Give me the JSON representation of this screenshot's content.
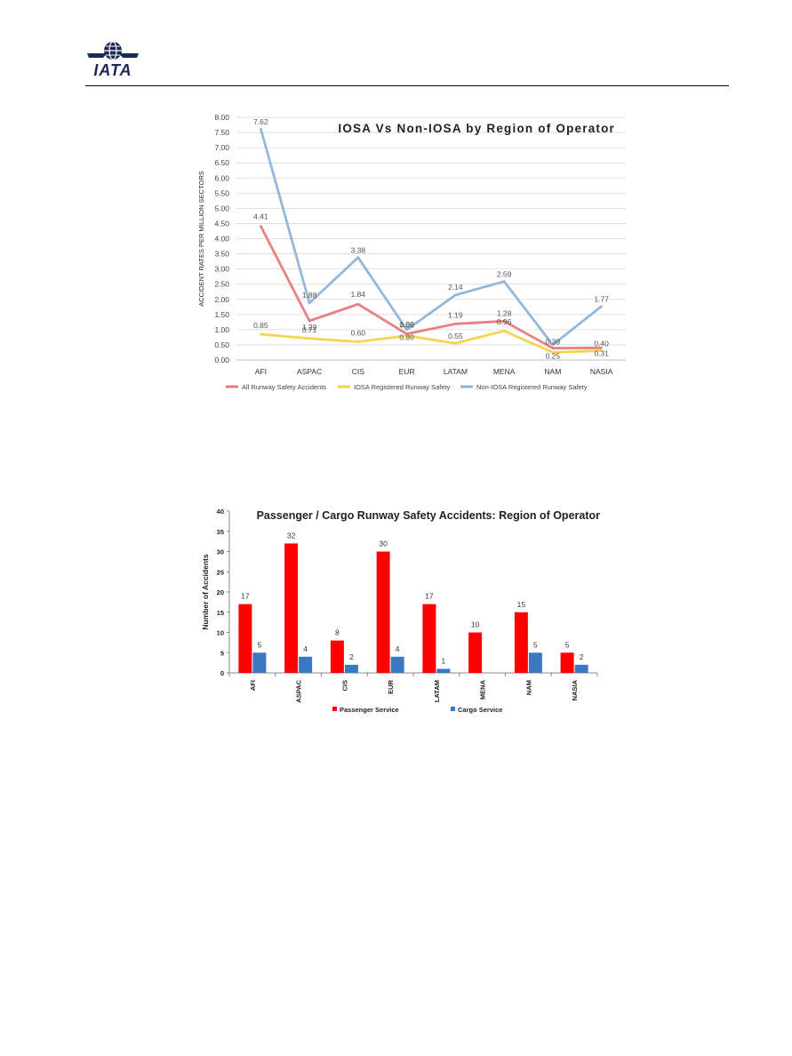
{
  "header": {
    "logo_text": "IATA"
  },
  "chart_data": [
    {
      "type": "line",
      "title": "IOSA Vs Non-IOSA by Region of Operator",
      "xlabel": "",
      "ylabel": "ACCIDENT RATES PER MILLION SECTORS",
      "categories": [
        "AFI",
        "ASPAC",
        "CIS",
        "EUR",
        "LATAM",
        "MENA",
        "NAM",
        "NASIA"
      ],
      "ylim": [
        0,
        8
      ],
      "yticks": [
        "0.00",
        "0.50",
        "1.00",
        "1.50",
        "2.00",
        "2.50",
        "3.00",
        "3.50",
        "4.00",
        "4.50",
        "5.00",
        "5.50",
        "6.00",
        "6.50",
        "7.00",
        "7.50",
        "8.00"
      ],
      "grid": true,
      "legend_position": "bottom",
      "series": [
        {
          "name": "All Runway Safety Accidents",
          "color": "#e8787a",
          "values": [
            4.41,
            1.29,
            1.84,
            0.86,
            1.19,
            1.28,
            0.39,
            0.4
          ],
          "labels": [
            "4.41",
            "1.29",
            "1.84",
            "0.86",
            "1.19",
            "1.28",
            "0.39",
            "0.40"
          ]
        },
        {
          "name": "IOSA Registered Runway Safety",
          "color": "#f4d24a",
          "values": [
            0.85,
            0.71,
            0.6,
            0.8,
            0.55,
            0.96,
            0.25,
            0.31
          ],
          "labels": [
            "0.85",
            "0.71",
            "0.60",
            "0.80",
            "0.55",
            "0.96",
            "0.25",
            "0.31"
          ]
        },
        {
          "name": "Non-IOSA Registered Runway Safety",
          "color": "#8eb4d8",
          "values": [
            7.62,
            1.88,
            3.38,
            1.0,
            2.14,
            2.59,
            0.5,
            1.77
          ],
          "labels": [
            "7.62",
            "1.88",
            "3.38",
            "1.00",
            "2.14",
            "2.59",
            "",
            "1.77"
          ]
        }
      ]
    },
    {
      "type": "bar",
      "title": "Passenger / Cargo Runway Safety Accidents: Region of Operator",
      "xlabel": "",
      "ylabel": "Number of Accidents",
      "categories": [
        "AFI",
        "ASPAC",
        "CIS",
        "EUR",
        "LATAM",
        "MENA",
        "NAM",
        "NASIA"
      ],
      "ylim": [
        0,
        40
      ],
      "yticks": [
        "0",
        "5",
        "10",
        "15",
        "20",
        "25",
        "30",
        "35",
        "40"
      ],
      "grid": false,
      "legend_position": "bottom",
      "series": [
        {
          "name": "Passenger Service",
          "color": "#ff0000",
          "values": [
            17,
            32,
            8,
            30,
            17,
            10,
            15,
            5
          ],
          "labels": [
            "17",
            "32",
            "8",
            "30",
            "17",
            "10",
            "15",
            "5"
          ]
        },
        {
          "name": "Cargo Service",
          "color": "#3a78c4",
          "values": [
            5,
            4,
            2,
            4,
            1,
            0,
            5,
            2
          ],
          "labels": [
            "5",
            "4",
            "2",
            "4",
            "1",
            "",
            "5",
            "2"
          ]
        }
      ]
    }
  ]
}
